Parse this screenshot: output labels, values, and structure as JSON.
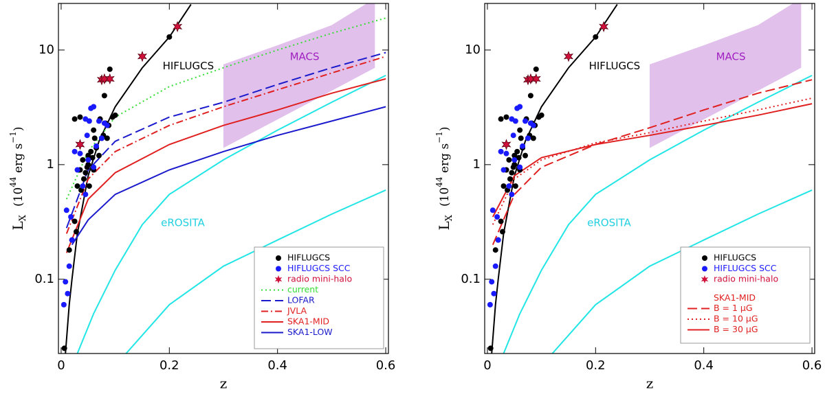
{
  "chart_data": [
    {
      "type": "line",
      "xlabel": "z",
      "ylabel": {
        "main": "L",
        "sub": "X",
        "open": "(10",
        "exp": "44",
        "unit": " erg s",
        "unit_exp": "−1",
        "close": ")"
      },
      "xlim": [
        -0.005,
        0.605
      ],
      "xticks": [
        0,
        0.2,
        0.4,
        0.6
      ],
      "ylim": [
        0.0225,
        25.5
      ],
      "yticks": [
        0.1,
        1,
        10
      ],
      "log_y": true,
      "regions": [
        {
          "color": "#dcb6e8",
          "x": [
            0.3,
            0.3,
            0.4,
            0.5,
            0.565,
            0.58,
            0.58,
            0.45,
            0.3
          ],
          "values": [
            1.4,
            7.5,
            11,
            16.5,
            25.5,
            25.5,
            7,
            3.3,
            1.4
          ]
        }
      ],
      "curves": [
        {
          "color": "#000000",
          "x": [
            0.008,
            0.015,
            0.02,
            0.03,
            0.05,
            0.07,
            0.1,
            0.15,
            0.2,
            0.24
          ],
          "values": [
            0.0225,
            0.06,
            0.1,
            0.25,
            0.8,
            1.6,
            3.2,
            7,
            13,
            25
          ]
        },
        {
          "color": "#22e5e5",
          "x": [
            0.03,
            0.06,
            0.1,
            0.15,
            0.2,
            0.3,
            0.4,
            0.5,
            0.6
          ],
          "values": [
            0.0225,
            0.05,
            0.12,
            0.3,
            0.55,
            1.1,
            2,
            3.5,
            6
          ]
        },
        {
          "color": "#22e5e5",
          "x": [
            0.12,
            0.2,
            0.3,
            0.4,
            0.5,
            0.6
          ],
          "values": [
            0.0225,
            0.06,
            0.13,
            0.22,
            0.37,
            0.6
          ]
        }
      ],
      "scatter": [
        {
          "name": "HIFLUGCS",
          "color": "#000000",
          "marker": "dot",
          "x": [
            0.006,
            0.015,
            0.02,
            0.025,
            0.028,
            0.03,
            0.035,
            0.037,
            0.04,
            0.042,
            0.045,
            0.048,
            0.05,
            0.052,
            0.055,
            0.058,
            0.06,
            0.062,
            0.065,
            0.07,
            0.072,
            0.075,
            0.078,
            0.08,
            0.082,
            0.085,
            0.088,
            0.09,
            0.095,
            0.1,
            0.2,
            0.025,
            0.035,
            0.05,
            0.06
          ],
          "values": [
            0.025,
            0.18,
            0.22,
            0.32,
            0.26,
            0.65,
            0.9,
            0.6,
            1.1,
            0.75,
            0.85,
            0.95,
            1.0,
            0.65,
            1.3,
            1.15,
            0.9,
            1.7,
            1.4,
            1.2,
            2.5,
            1.7,
            1.8,
            4.0,
            2.3,
            1.7,
            2.2,
            6.8,
            2.6,
            2.7,
            13,
            2.5,
            2.6,
            1.2,
            2.0
          ]
        },
        {
          "name": "HIFLUGCS SCC",
          "color": "#1a1aff",
          "marker": "dot",
          "x": [
            0.005,
            0.008,
            0.01,
            0.012,
            0.015,
            0.018,
            0.02,
            0.025,
            0.03,
            0.035,
            0.04,
            0.045,
            0.048,
            0.05,
            0.052,
            0.055,
            0.06,
            0.065,
            0.07,
            0.075,
            0.08,
            0.085,
            0.06,
            0.045
          ],
          "values": [
            0.06,
            0.095,
            0.4,
            0.075,
            0.13,
            0.35,
            0.22,
            1.3,
            0.9,
            1.25,
            0.65,
            0.55,
            1.8,
            1.1,
            2.4,
            3.1,
            3.2,
            1.45,
            2.4,
            1.7,
            2.3,
            2.2,
            0.95,
            2.5
          ]
        },
        {
          "name": "radio mini-halo",
          "color": "#d0103a",
          "marker": "star",
          "x": [
            0.035,
            0.075,
            0.08,
            0.09,
            0.15,
            0.215
          ],
          "values": [
            1.5,
            5.5,
            5.6,
            5.6,
            8.8,
            16
          ]
        }
      ],
      "series": [
        {
          "name": "current",
          "color": "#33dd33",
          "dash": "dotted",
          "x": [
            0.01,
            0.05,
            0.1,
            0.2,
            0.3,
            0.4,
            0.5,
            0.6
          ],
          "values": [
            0.5,
            1.3,
            2.6,
            4.8,
            7,
            10,
            14,
            19
          ]
        },
        {
          "name": "LOFAR",
          "color": "#1a1acc",
          "dash": "dashed",
          "x": [
            0.01,
            0.05,
            0.1,
            0.2,
            0.3,
            0.4,
            0.5,
            0.6
          ],
          "values": [
            0.28,
            0.9,
            1.6,
            2.6,
            3.5,
            5,
            7,
            9.5
          ]
        },
        {
          "name": "JVLA",
          "color": "#e02020",
          "dash": "dashdot",
          "x": [
            0.01,
            0.05,
            0.1,
            0.2,
            0.3,
            0.4,
            0.5,
            0.6
          ],
          "values": [
            0.25,
            0.75,
            1.3,
            2.2,
            3.2,
            4.5,
            6.3,
            8.8
          ]
        },
        {
          "name": "SKA1-MID",
          "color": "#e02020",
          "dash": "solid",
          "x": [
            0.01,
            0.05,
            0.1,
            0.2,
            0.3,
            0.4,
            0.5,
            0.6
          ],
          "values": [
            0.17,
            0.5,
            0.85,
            1.5,
            2.2,
            3,
            4.2,
            5.6
          ]
        },
        {
          "name": "SKA1-LOW",
          "color": "#1a1acc",
          "dash": "solid",
          "x": [
            0.02,
            0.05,
            0.1,
            0.2,
            0.3,
            0.4,
            0.5,
            0.6
          ],
          "values": [
            0.2,
            0.33,
            0.55,
            0.9,
            1.3,
            1.8,
            2.4,
            3.2
          ]
        }
      ],
      "annotations": [
        {
          "text": "HIFLUGCS",
          "x": 0.235,
          "y": 7.2,
          "color": "#000000"
        },
        {
          "text": "MACS",
          "x": 0.45,
          "y": 8.7,
          "color": "#a020c0"
        },
        {
          "text": "eROSITA",
          "x": 0.225,
          "y": 0.31,
          "color": "#22d0e0"
        }
      ]
    },
    {
      "type": "line",
      "xlabel": "z",
      "ylabel": {
        "main": "L",
        "sub": "X",
        "open": "(10",
        "exp": "44",
        "unit": " erg s",
        "unit_exp": "−1",
        "close": ")"
      },
      "xlim": [
        -0.005,
        0.605
      ],
      "xticks": [
        0,
        0.2,
        0.4,
        0.6
      ],
      "ylim": [
        0.0225,
        25.5
      ],
      "yticks": [
        0.1,
        1,
        10
      ],
      "log_y": true,
      "legend_title": "SKA1-MID",
      "regions": [
        {
          "color": "#dcb6e8",
          "x": [
            0.3,
            0.3,
            0.4,
            0.5,
            0.565,
            0.58,
            0.58,
            0.45,
            0.3
          ],
          "values": [
            1.4,
            7.5,
            11,
            16.5,
            25.5,
            25.5,
            7,
            3.3,
            1.4
          ]
        }
      ],
      "curves": [
        {
          "color": "#000000",
          "x": [
            0.008,
            0.015,
            0.02,
            0.03,
            0.05,
            0.07,
            0.1,
            0.15,
            0.2,
            0.24
          ],
          "values": [
            0.0225,
            0.06,
            0.1,
            0.25,
            0.8,
            1.6,
            3.2,
            7,
            13,
            25
          ]
        },
        {
          "color": "#22e5e5",
          "x": [
            0.03,
            0.06,
            0.1,
            0.15,
            0.2,
            0.3,
            0.4,
            0.5,
            0.6
          ],
          "values": [
            0.0225,
            0.05,
            0.12,
            0.3,
            0.55,
            1.1,
            2,
            3.5,
            6
          ]
        },
        {
          "color": "#22e5e5",
          "x": [
            0.12,
            0.2,
            0.3,
            0.4,
            0.5,
            0.6
          ],
          "values": [
            0.0225,
            0.06,
            0.13,
            0.22,
            0.37,
            0.6
          ]
        }
      ],
      "scatter": [
        {
          "name": "HIFLUGCS",
          "color": "#000000",
          "marker": "dot",
          "x": [
            0.006,
            0.015,
            0.02,
            0.025,
            0.028,
            0.03,
            0.035,
            0.037,
            0.04,
            0.042,
            0.045,
            0.048,
            0.05,
            0.052,
            0.055,
            0.058,
            0.06,
            0.062,
            0.065,
            0.07,
            0.072,
            0.075,
            0.078,
            0.08,
            0.082,
            0.085,
            0.088,
            0.09,
            0.095,
            0.1,
            0.2,
            0.025,
            0.035,
            0.05,
            0.06
          ],
          "values": [
            0.025,
            0.18,
            0.22,
            0.32,
            0.26,
            0.65,
            0.9,
            0.6,
            1.1,
            0.75,
            0.85,
            0.95,
            1.0,
            0.65,
            1.3,
            1.15,
            0.9,
            1.7,
            1.4,
            1.2,
            2.5,
            1.7,
            1.8,
            4.0,
            2.3,
            1.7,
            2.2,
            6.8,
            2.6,
            2.7,
            13,
            2.5,
            2.6,
            1.2,
            2.0
          ]
        },
        {
          "name": "HIFLUGCS SCC",
          "color": "#1a1aff",
          "marker": "dot",
          "x": [
            0.005,
            0.008,
            0.01,
            0.012,
            0.015,
            0.018,
            0.02,
            0.025,
            0.03,
            0.035,
            0.04,
            0.045,
            0.048,
            0.05,
            0.052,
            0.055,
            0.06,
            0.065,
            0.07,
            0.075,
            0.08,
            0.085,
            0.06,
            0.045
          ],
          "values": [
            0.06,
            0.095,
            0.4,
            0.075,
            0.13,
            0.35,
            0.22,
            1.3,
            0.9,
            1.25,
            0.65,
            0.55,
            1.8,
            1.1,
            2.4,
            3.1,
            3.2,
            1.45,
            2.4,
            1.7,
            2.3,
            2.2,
            0.95,
            2.5
          ]
        },
        {
          "name": "radio mini-halo",
          "color": "#d0103a",
          "marker": "star",
          "x": [
            0.035,
            0.075,
            0.08,
            0.09,
            0.15,
            0.215
          ],
          "values": [
            1.5,
            5.5,
            5.6,
            5.6,
            8.8,
            16
          ]
        }
      ],
      "series": [
        {
          "name": "B = 1 μG",
          "color": "#e02020",
          "dash": "dashed",
          "x": [
            0.01,
            0.05,
            0.1,
            0.2,
            0.3,
            0.4,
            0.5,
            0.6
          ],
          "values": [
            0.2,
            0.55,
            0.95,
            1.5,
            2.1,
            3,
            4.2,
            5.5
          ]
        },
        {
          "name": "B = 10 μG",
          "color": "#e02020",
          "dash": "dotted",
          "x": [
            0.01,
            0.05,
            0.1,
            0.2,
            0.3,
            0.4,
            0.5,
            0.6
          ],
          "values": [
            0.3,
            0.75,
            1.1,
            1.55,
            1.9,
            2.4,
            3,
            3.8
          ]
        },
        {
          "name": "B = 30 μG",
          "color": "#e02020",
          "dash": "solid",
          "x": [
            0.01,
            0.05,
            0.1,
            0.2,
            0.3,
            0.4,
            0.5,
            0.6
          ],
          "values": [
            0.35,
            0.8,
            1.15,
            1.5,
            1.8,
            2.2,
            2.7,
            3.4
          ]
        }
      ],
      "annotations": [
        {
          "text": "HIFLUGCS",
          "x": 0.235,
          "y": 7.2,
          "color": "#000000"
        },
        {
          "text": "MACS",
          "x": 0.45,
          "y": 8.7,
          "color": "#a020c0"
        },
        {
          "text": "eROSITA",
          "x": 0.225,
          "y": 0.31,
          "color": "#22d0e0"
        }
      ]
    }
  ]
}
